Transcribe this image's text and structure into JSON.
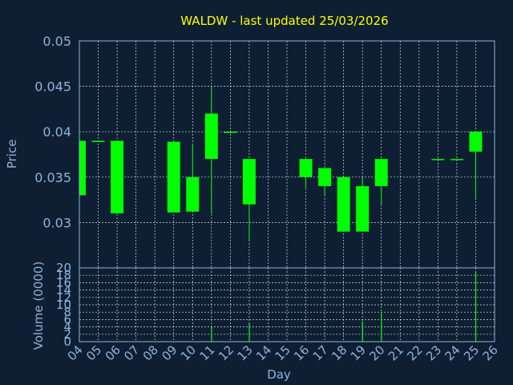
{
  "chart_data": {
    "type": "candlestick",
    "title": "WALDW - last updated 25/03/2026",
    "xlabel": "Day",
    "ylabel_price": "Price",
    "ylabel_volume": "Volume (0000)",
    "x_ticks": [
      "04",
      "05",
      "06",
      "07",
      "08",
      "09",
      "10",
      "11",
      "12",
      "13",
      "14",
      "15",
      "16",
      "17",
      "18",
      "19",
      "20",
      "21",
      "22",
      "23",
      "24",
      "25",
      "26"
    ],
    "price_ylim": [
      0.025,
      0.05
    ],
    "price_ticks": [
      "0.03",
      "0.035",
      "0.04",
      "0.045",
      "0.05"
    ],
    "volume_ylim": [
      0,
      20
    ],
    "volume_ticks": [
      "0",
      "2",
      "4",
      "6",
      "8",
      "10",
      "12",
      "14",
      "16",
      "18",
      "20"
    ],
    "grid": true,
    "colors": {
      "up": "#00ff00",
      "background": "#0f1f33",
      "title": "#ffff00",
      "axis_text": "#8fb3d9",
      "grid": "#ffffff"
    },
    "candles": [
      {
        "day": 4,
        "open": 0.033,
        "high": 0.039,
        "low": 0.033,
        "close": 0.039,
        "volume": 0
      },
      {
        "day": 5,
        "open": 0.039,
        "high": 0.039,
        "low": 0.039,
        "close": 0.039,
        "volume": 0
      },
      {
        "day": 6,
        "open": 0.031,
        "high": 0.039,
        "low": 0.031,
        "close": 0.039,
        "volume": 0
      },
      {
        "day": 9,
        "open": 0.0311,
        "high": 0.0389,
        "low": 0.0311,
        "close": 0.0389,
        "volume": 0
      },
      {
        "day": 10,
        "open": 0.0312,
        "high": 0.0387,
        "low": 0.0312,
        "close": 0.035,
        "volume": 0
      },
      {
        "day": 11,
        "open": 0.037,
        "high": 0.045,
        "low": 0.031,
        "close": 0.042,
        "volume": 4
      },
      {
        "day": 12,
        "open": 0.04,
        "high": 0.04,
        "low": 0.04,
        "close": 0.04,
        "volume": 0
      },
      {
        "day": 13,
        "open": 0.032,
        "high": 0.037,
        "low": 0.028,
        "close": 0.037,
        "volume": 5
      },
      {
        "day": 16,
        "open": 0.035,
        "high": 0.037,
        "low": 0.0338,
        "close": 0.037,
        "volume": 0
      },
      {
        "day": 17,
        "open": 0.034,
        "high": 0.036,
        "low": 0.033,
        "close": 0.036,
        "volume": 0
      },
      {
        "day": 18,
        "open": 0.029,
        "high": 0.035,
        "low": 0.029,
        "close": 0.035,
        "volume": 0
      },
      {
        "day": 19,
        "open": 0.029,
        "high": 0.035,
        "low": 0.029,
        "close": 0.034,
        "volume": 5.5
      },
      {
        "day": 20,
        "open": 0.034,
        "high": 0.037,
        "low": 0.032,
        "close": 0.037,
        "volume": 8
      },
      {
        "day": 23,
        "open": 0.037,
        "high": 0.037,
        "low": 0.037,
        "close": 0.037,
        "volume": 0
      },
      {
        "day": 24,
        "open": 0.037,
        "high": 0.037,
        "low": 0.037,
        "close": 0.037,
        "volume": 0
      },
      {
        "day": 25,
        "open": 0.0378,
        "high": 0.04,
        "low": 0.0326,
        "close": 0.04,
        "volume": 19
      }
    ]
  }
}
